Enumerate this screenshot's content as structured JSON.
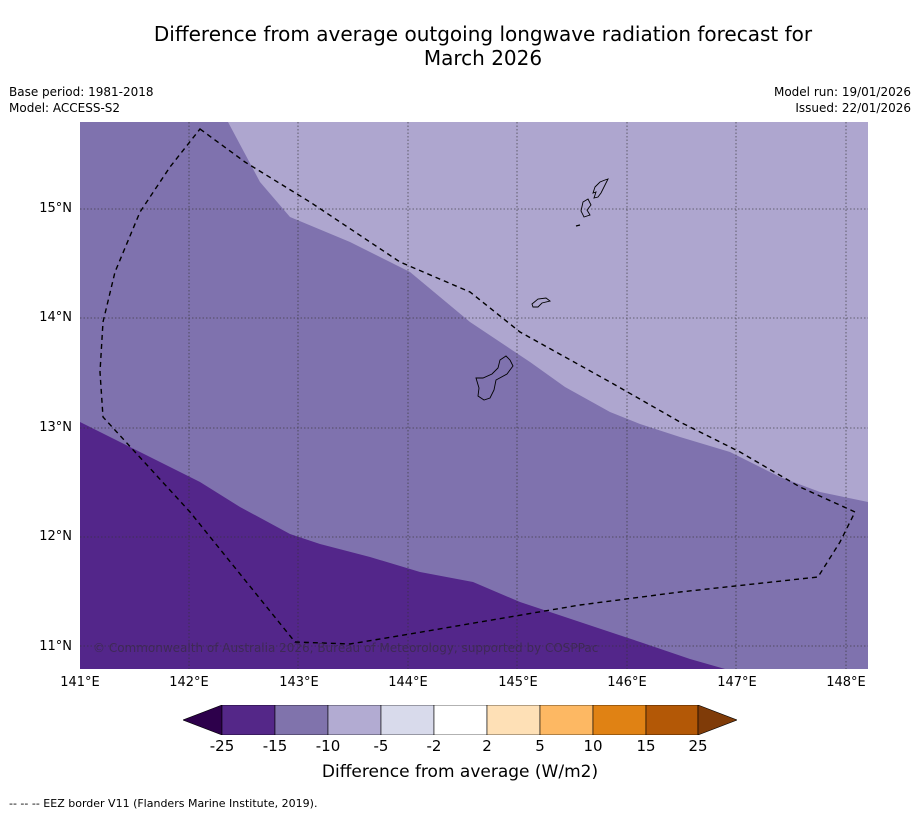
{
  "title_line1": "Difference from average outgoing longwave radiation forecast for",
  "title_line2": "March 2026",
  "meta": {
    "base_period": "Base period: 1981-2018",
    "model": "Model: ACCESS-S2",
    "model_run": "Model run: 19/01/2026",
    "issued": "Issued: 22/01/2026"
  },
  "map": {
    "copyright": "© Commonwealth of Australia 2026, Bureau of Meteorology, supported by COSPPac",
    "lat_labels": [
      "15°N",
      "14°N",
      "13°N",
      "12°N",
      "11°N"
    ],
    "lon_labels": [
      "141°E",
      "142°E",
      "143°E",
      "144°E",
      "145°E",
      "146°E",
      "147°E",
      "148°E"
    ],
    "colors": {
      "band_strong_neg": "#53268a",
      "band_mid_neg": "#7f72ae",
      "band_weak_neg": "#aea6cf",
      "grid": "#333333",
      "eez_line": "#000000"
    }
  },
  "colorbar": {
    "ticks": [
      "-25",
      "-15",
      "-10",
      "-5",
      "-2",
      "2",
      "5",
      "10",
      "15",
      "25"
    ],
    "colors": [
      "#2d004b",
      "#542788",
      "#8073ac",
      "#b2abd2",
      "#d8daeb",
      "#ffffff",
      "#fee0b6",
      "#fdb863",
      "#e08214",
      "#b35806",
      "#7f3b08"
    ],
    "label": "Difference from average (W/m2)"
  },
  "footnote": "-- -- -- EEZ border V11 (Flanders Marine Institute, 2019)."
}
